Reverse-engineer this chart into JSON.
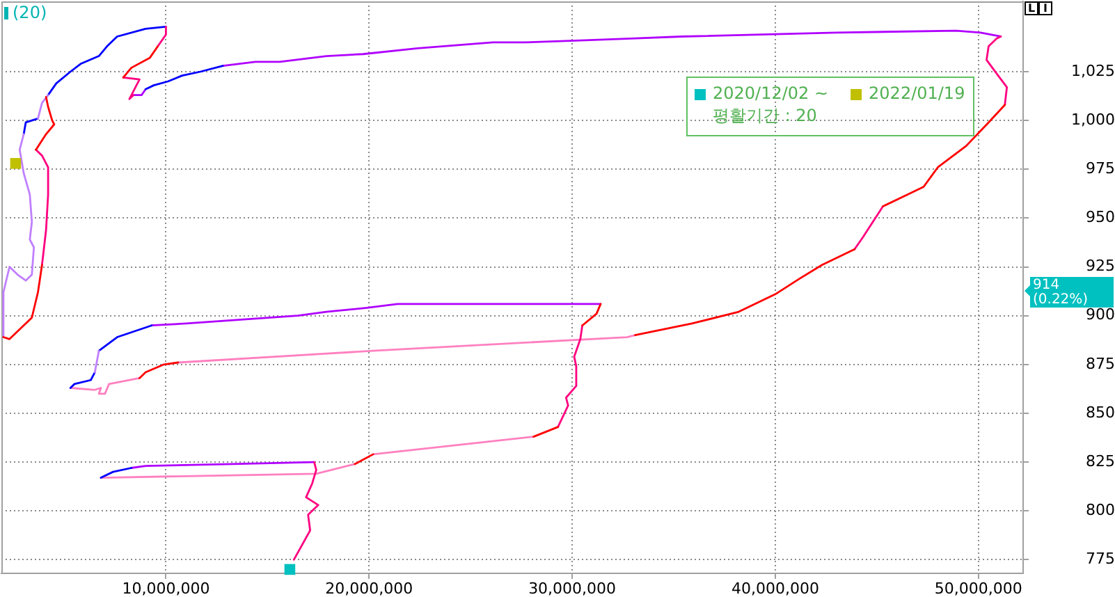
{
  "chart_data": {
    "type": "line",
    "title": "(20)",
    "legend": "top right",
    "legend_title": "평활기간 : 20",
    "xlim": [
      1900000,
      52200000
    ],
    "xticks": [
      {
        "value": 10000000,
        "label": "10,000,000"
      },
      {
        "value": 20000000,
        "label": "20,000,000"
      },
      {
        "value": 30000000,
        "label": "30,000,000"
      },
      {
        "value": 40000000,
        "label": "40,000,000"
      },
      {
        "value": 50000000,
        "label": "50,000,000"
      }
    ],
    "ylim": [
      768,
      1061
    ],
    "yticks": [
      775,
      800,
      825,
      850,
      875,
      900,
      925,
      950,
      975,
      {
        "value": 1000,
        "label": "1,000"
      },
      {
        "value": 1025,
        "label": "1,025"
      }
    ],
    "grid": true,
    "annotations": [
      "914 (0.22%)",
      "L",
      "I"
    ],
    "series": [
      {
        "color": "#b000ff",
        "x": [
          17300000,
          13300000,
          9000000,
          8300000,
          null,
          31400000,
          21400000,
          19900000,
          17900000,
          16500000,
          11000000,
          9300000,
          null,
          51100000,
          50100000,
          48900000,
          43000000,
          35400000,
          32900000,
          30400000,
          27700000,
          26100000,
          22400000,
          19700000,
          17900000,
          15600000,
          14400000,
          12800000,
          null,
          9000000,
          8800000,
          8400000
        ],
        "values": [
          825,
          824,
          823,
          822,
          null,
          906,
          906,
          904,
          902,
          900,
          896,
          895,
          null,
          1043,
          1045,
          1046,
          1045,
          1043,
          1042,
          1041,
          1040,
          1040,
          1037,
          1034,
          1033,
          1030,
          1030,
          1028,
          null,
          1016,
          1013,
          1013
        ]
      },
      {
        "color": "#ff80c0",
        "x": [
          6800000,
          17400000,
          19300000,
          null,
          20200000,
          28100000,
          null,
          5300000,
          6500000,
          6800000,
          6700000,
          7000000,
          7200000,
          8700000,
          null,
          10600000,
          20200000,
          32700000,
          33100000
        ],
        "values": [
          817,
          819,
          824,
          null,
          829,
          838,
          null,
          863,
          862,
          863,
          860,
          860,
          865,
          868,
          null,
          876,
          882,
          889,
          890
        ]
      },
      {
        "color": "#0000ff",
        "x": [
          8300000,
          7400000,
          6800000,
          null,
          9300000,
          7600000,
          6700000,
          null,
          6500000,
          6300000,
          5500000,
          5300000,
          null,
          12800000,
          11700000,
          10800000,
          10100000,
          9400000,
          9000000,
          null,
          10000000,
          9000000,
          7600000,
          7100000,
          6700000,
          5800000,
          5300000,
          4600000,
          4200000,
          null,
          3700000,
          3100000,
          3000000
        ],
        "values": [
          822,
          820,
          817,
          null,
          895,
          889,
          882,
          null,
          871,
          867,
          865,
          863,
          null,
          1028,
          1025,
          1023,
          1020,
          1018,
          1016,
          null,
          1048,
          1047,
          1043,
          1038,
          1033,
          1029,
          1025,
          1019,
          1013,
          null,
          1001,
          999,
          993
        ]
      },
      {
        "color": "#c080ff",
        "x": [
          6700000,
          6500000,
          null,
          4200000,
          3900000,
          3700000,
          null,
          3000000,
          2800000,
          3000000,
          3300000,
          3400000,
          3300000,
          3500000,
          3400000,
          3100000,
          2700000,
          2300000,
          2000000,
          2000000
        ],
        "values": [
          882,
          871,
          null,
          1013,
          1009,
          1001,
          null,
          993,
          985,
          973,
          962,
          948,
          939,
          935,
          921,
          918,
          921,
          925,
          912,
          889
        ]
      },
      {
        "color": "#ff0080",
        "x": [
          16300000,
          17100000,
          17000000,
          17500000,
          16900000,
          17200000,
          17400000,
          17300000,
          null,
          29300000,
          29800000,
          29700000,
          30200000,
          30200000,
          30100000,
          30400000,
          30500000,
          null,
          43900000,
          44300000,
          45300000,
          null,
          51300000,
          51400000,
          50900000,
          50400000,
          50500000,
          50900000,
          51100000,
          null,
          8400000,
          8200000,
          8700000,
          7900000,
          null,
          9600000,
          10000000,
          10000000,
          null,
          3900000,
          4100000,
          4200000,
          4200000,
          3900000,
          3600000
        ],
        "values": [
          775,
          790,
          798,
          803,
          807,
          814,
          821,
          825,
          null,
          843,
          854,
          858,
          864,
          874,
          879,
          888,
          895,
          null,
          934,
          940,
          956,
          null,
          1008,
          1017,
          1024,
          1031,
          1038,
          1042,
          1043,
          null,
          1013,
          1011,
          1021,
          1022,
          null,
          1038,
          1044,
          1048,
          null,
          926,
          944,
          962,
          976,
          982,
          985
        ]
      },
      {
        "color": "#ff0000",
        "x": [
          19300000,
          20200000,
          null,
          28100000,
          29300000,
          null,
          30500000,
          31200000,
          31400000,
          null,
          8700000,
          9000000,
          9900000,
          10600000,
          null,
          33100000,
          35900000,
          38200000,
          40000000,
          41200000,
          42300000,
          43900000,
          null,
          45300000,
          46500000,
          47300000,
          48000000,
          49400000,
          50500000,
          51300000,
          null,
          7900000,
          8300000,
          9200000,
          9600000,
          null,
          2000000,
          2300000,
          3400000,
          3700000,
          3900000,
          null,
          3600000,
          4100000,
          4500000,
          4400000,
          4200000,
          4100000
        ],
        "values": [
          824,
          829,
          null,
          838,
          843,
          null,
          895,
          901,
          906,
          null,
          868,
          871,
          875,
          876,
          null,
          890,
          896,
          902,
          911,
          919,
          926,
          934,
          null,
          956,
          962,
          966,
          976,
          987,
          999,
          1008,
          null,
          1022,
          1027,
          1032,
          1038,
          null,
          889,
          888,
          899,
          912,
          926,
          null,
          985,
          993,
          998,
          1000,
          1007,
          1012
        ]
      },
      {
        "type": "scatter",
        "name": "2020/12/02 ~",
        "color": "#00c0c0",
        "marker": "square",
        "x": [
          16100000
        ],
        "values": [
          770
        ]
      },
      {
        "type": "scatter",
        "name": "2022/01/19",
        "color": "#c0c000",
        "marker": "square",
        "x": [
          2600000
        ],
        "values": [
          978
        ]
      }
    ]
  }
}
